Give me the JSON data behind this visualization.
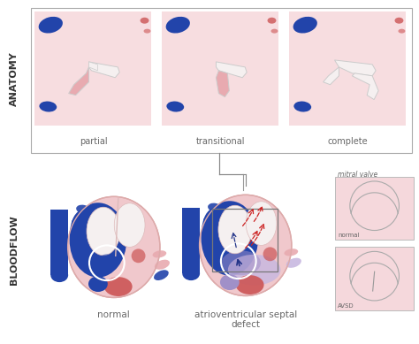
{
  "bg_color": "#ffffff",
  "anatomy_label": "ANATOMY",
  "bloodflow_label": "BLOODFLOW",
  "anatomy_sublabels": [
    "partial",
    "transitional",
    "complete"
  ],
  "bloodflow_sublabels": [
    "normal",
    "atrioventricular septal\ndefect"
  ],
  "mitral_valve_label": "mitral valve",
  "normal_label": "normal",
  "avsd_label": "AVSD",
  "pink_bg": "#f5d8dc",
  "panel_bg": "#f7dde0",
  "blue_color": "#2244aa",
  "red_color": "#cc5555",
  "pink_tissue": "#e8aab0",
  "pink_light": "#f0c8cc",
  "lavender": "#a090c8",
  "lavender_light": "#c8b8e0",
  "outline_color": "#bbbbbb",
  "box_color": "#999999",
  "label_color": "#666666",
  "arrow_red": "#cc2222",
  "arrow_blue": "#223388",
  "heart_outline": "#ddaaaa",
  "white_struct": "#f5f0f0",
  "mv_bg": "#f5d8dc"
}
